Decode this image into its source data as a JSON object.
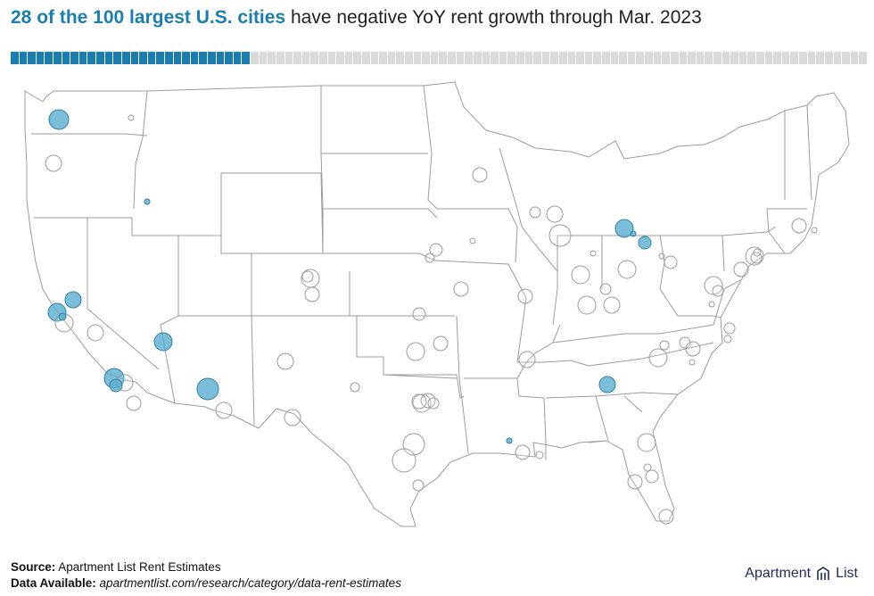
{
  "title": {
    "highlight": "28 of the 100 largest U.S. cities",
    "rest": " have negative YoY rent growth through Mar. 2023"
  },
  "progress": {
    "filled": 28,
    "total": 100,
    "filled_color": "#1a7fb0",
    "empty_color": "#d9d9d9"
  },
  "colors": {
    "negative": "#5aaed0",
    "negative_stroke": "#2f7fa6",
    "positive_stroke": "#9a9a9a",
    "state_lines": "#9b9b9b"
  },
  "footer": {
    "source_label": "Source:",
    "source_text": " Apartment List Rent Estimates",
    "data_label": "Data Available:",
    "data_text": " apartmentlist.com/research/category/data-rent-estimates"
  },
  "logo": {
    "text_left": "Apartment",
    "text_right": "List",
    "icon": "apartment-list-logo-icon"
  }
}
